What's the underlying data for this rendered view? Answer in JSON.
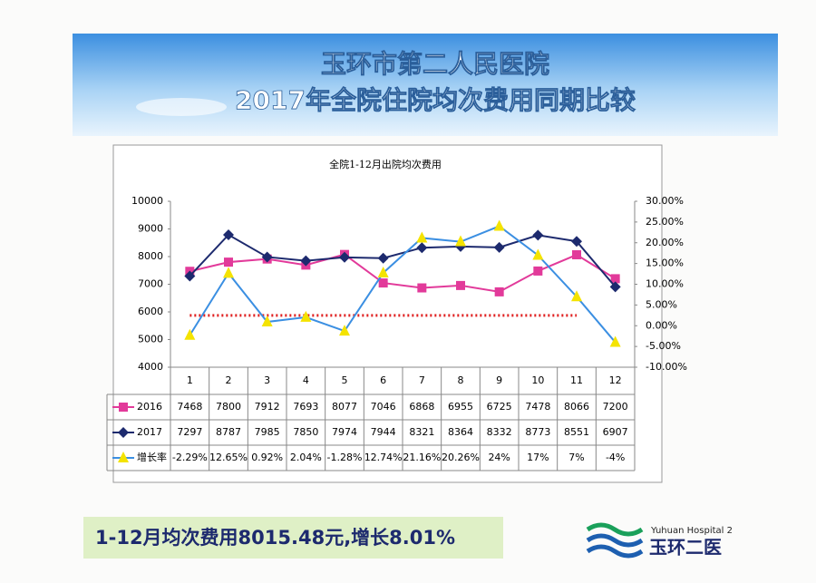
{
  "banner": {
    "line1": "玉环市第二人民医院",
    "line2": "2017年全院住院均次费用同期比较"
  },
  "chart_data": {
    "type": "line",
    "title": "全院1-12月出院均次费用",
    "categories": [
      "1",
      "2",
      "3",
      "4",
      "5",
      "6",
      "7",
      "8",
      "9",
      "10",
      "11",
      "12"
    ],
    "series": [
      {
        "name": "2016",
        "color": "#e23a9a",
        "marker": "square",
        "values": [
          7468,
          7800,
          7912,
          7693,
          8077,
          7046,
          6868,
          6955,
          6725,
          7478,
          8066,
          7200
        ]
      },
      {
        "name": "2017",
        "color": "#1d2a6e",
        "marker": "diamond",
        "values": [
          7297,
          8787,
          7985,
          7850,
          7974,
          7944,
          8321,
          8364,
          8332,
          8773,
          8551,
          6907
        ]
      },
      {
        "name": "增长率",
        "color": "#3b8fe2",
        "marker": "triangle",
        "marker_color": "#f4e300",
        "axis": "y2",
        "values": [
          -2.29,
          12.65,
          0.92,
          2.04,
          -1.28,
          12.74,
          21.16,
          20.26,
          24,
          17,
          7,
          -4
        ],
        "value_labels": [
          "-2.29%",
          "12.65%",
          "0.92%",
          "2.04%",
          "-1.28%",
          "12.74%",
          "21.16%",
          "20.26%",
          "24%",
          "17%",
          "7%",
          "-4%"
        ]
      }
    ],
    "reference_line": {
      "value": 2.5,
      "axis": "y2",
      "color": "#e02020"
    },
    "ylim": [
      4000,
      10000
    ],
    "yticks": [
      4000,
      5000,
      6000,
      7000,
      8000,
      9000,
      10000
    ],
    "y2lim": [
      -10,
      30
    ],
    "y2ticks": [
      {
        "value": -10,
        "label": "-10.00%"
      },
      {
        "value": -5,
        "label": "-5.00%"
      },
      {
        "value": 0,
        "label": "0.00%"
      },
      {
        "value": 5,
        "label": "5.00%"
      },
      {
        "value": 10,
        "label": "10.00%"
      },
      {
        "value": 15,
        "label": "15.00%"
      },
      {
        "value": 20,
        "label": "20.00%"
      },
      {
        "value": 25,
        "label": "25.00%"
      },
      {
        "value": 30,
        "label": "30.00%"
      }
    ]
  },
  "footer": {
    "summary": "1-12月均次费用8015.48元,增长8.01%",
    "logo_en": "Yuhuan Hospital 2",
    "logo_cn": "玉环二医"
  }
}
